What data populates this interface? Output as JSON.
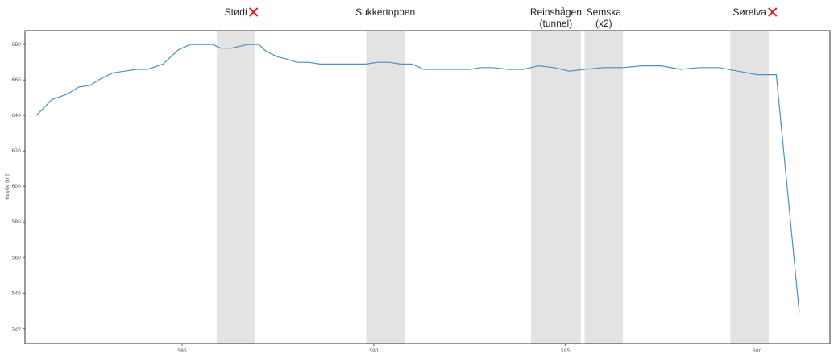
{
  "chart_data": {
    "type": "line",
    "title": "",
    "xlabel": "",
    "ylabel": "Høyde [m]",
    "xlim": [
      580.9,
      601.9
    ],
    "ylim": [
      511.5,
      687.8
    ],
    "grid": false,
    "xticks": [
      585,
      590,
      595,
      600
    ],
    "xtick_labels": [
      "585",
      "590",
      "595",
      "600"
    ],
    "yticks": [
      520,
      540,
      560,
      580,
      600,
      620,
      640,
      660,
      680
    ],
    "ytick_labels": [
      "520",
      "540",
      "560",
      "580",
      "600",
      "620",
      "640",
      "660",
      "680"
    ],
    "series": [
      {
        "color": "#4a90c9",
        "x": [
          581.2,
          581.6,
          582.0,
          582.3,
          582.6,
          582.9,
          583.2,
          583.5,
          583.8,
          584.1,
          584.5,
          584.9,
          585.2,
          585.5,
          585.8,
          586.0,
          586.3,
          586.7,
          587.0,
          587.2,
          587.5,
          587.7,
          588.0,
          588.3,
          588.6,
          588.9,
          589.2,
          589.5,
          589.8,
          590.1,
          590.4,
          590.7,
          591.0,
          591.3,
          591.6,
          591.9,
          592.2,
          592.5,
          592.8,
          593.1,
          593.5,
          593.9,
          594.3,
          594.7,
          595.1,
          595.5,
          596.0,
          596.5,
          597.0,
          597.5,
          598.0,
          598.5,
          599.0,
          599.5,
          600.0,
          600.5,
          601.1
        ],
        "y": [
          640,
          649,
          652,
          656,
          657,
          661,
          664,
          665,
          666,
          666,
          669,
          677,
          680,
          680,
          680,
          678,
          678,
          680,
          680,
          676,
          673,
          672,
          670,
          670,
          669,
          669,
          669,
          669,
          669,
          670,
          670,
          669,
          669,
          666,
          666,
          666,
          666,
          666,
          667,
          667,
          666,
          666,
          668,
          667,
          665,
          666,
          667,
          667,
          668,
          668,
          666,
          667,
          667,
          665,
          663,
          663,
          529
        ]
      }
    ],
    "shaded_regions": [
      {
        "x0": 585.9,
        "x1": 586.9,
        "label": "Stødi",
        "marked": true
      },
      {
        "x0": 589.8,
        "x1": 590.8,
        "label": "Sukkertoppen",
        "marked": false
      },
      {
        "x0": 594.1,
        "x1": 595.4,
        "label": "Reinshågen (tunnel)",
        "label_lines": [
          "Reinshågen",
          "(tunnel)"
        ],
        "marked": false
      },
      {
        "x0": 595.5,
        "x1": 596.5,
        "label": "Semska (x2)",
        "label_lines": [
          "Semska",
          "(x2)"
        ],
        "marked": false
      },
      {
        "x0": 599.3,
        "x1": 600.3,
        "label": "Sørelva",
        "marked": true
      }
    ],
    "annotation_colors": {
      "shade": "#e3e3e3",
      "cross": "#e02020",
      "axes": "#333333"
    }
  }
}
